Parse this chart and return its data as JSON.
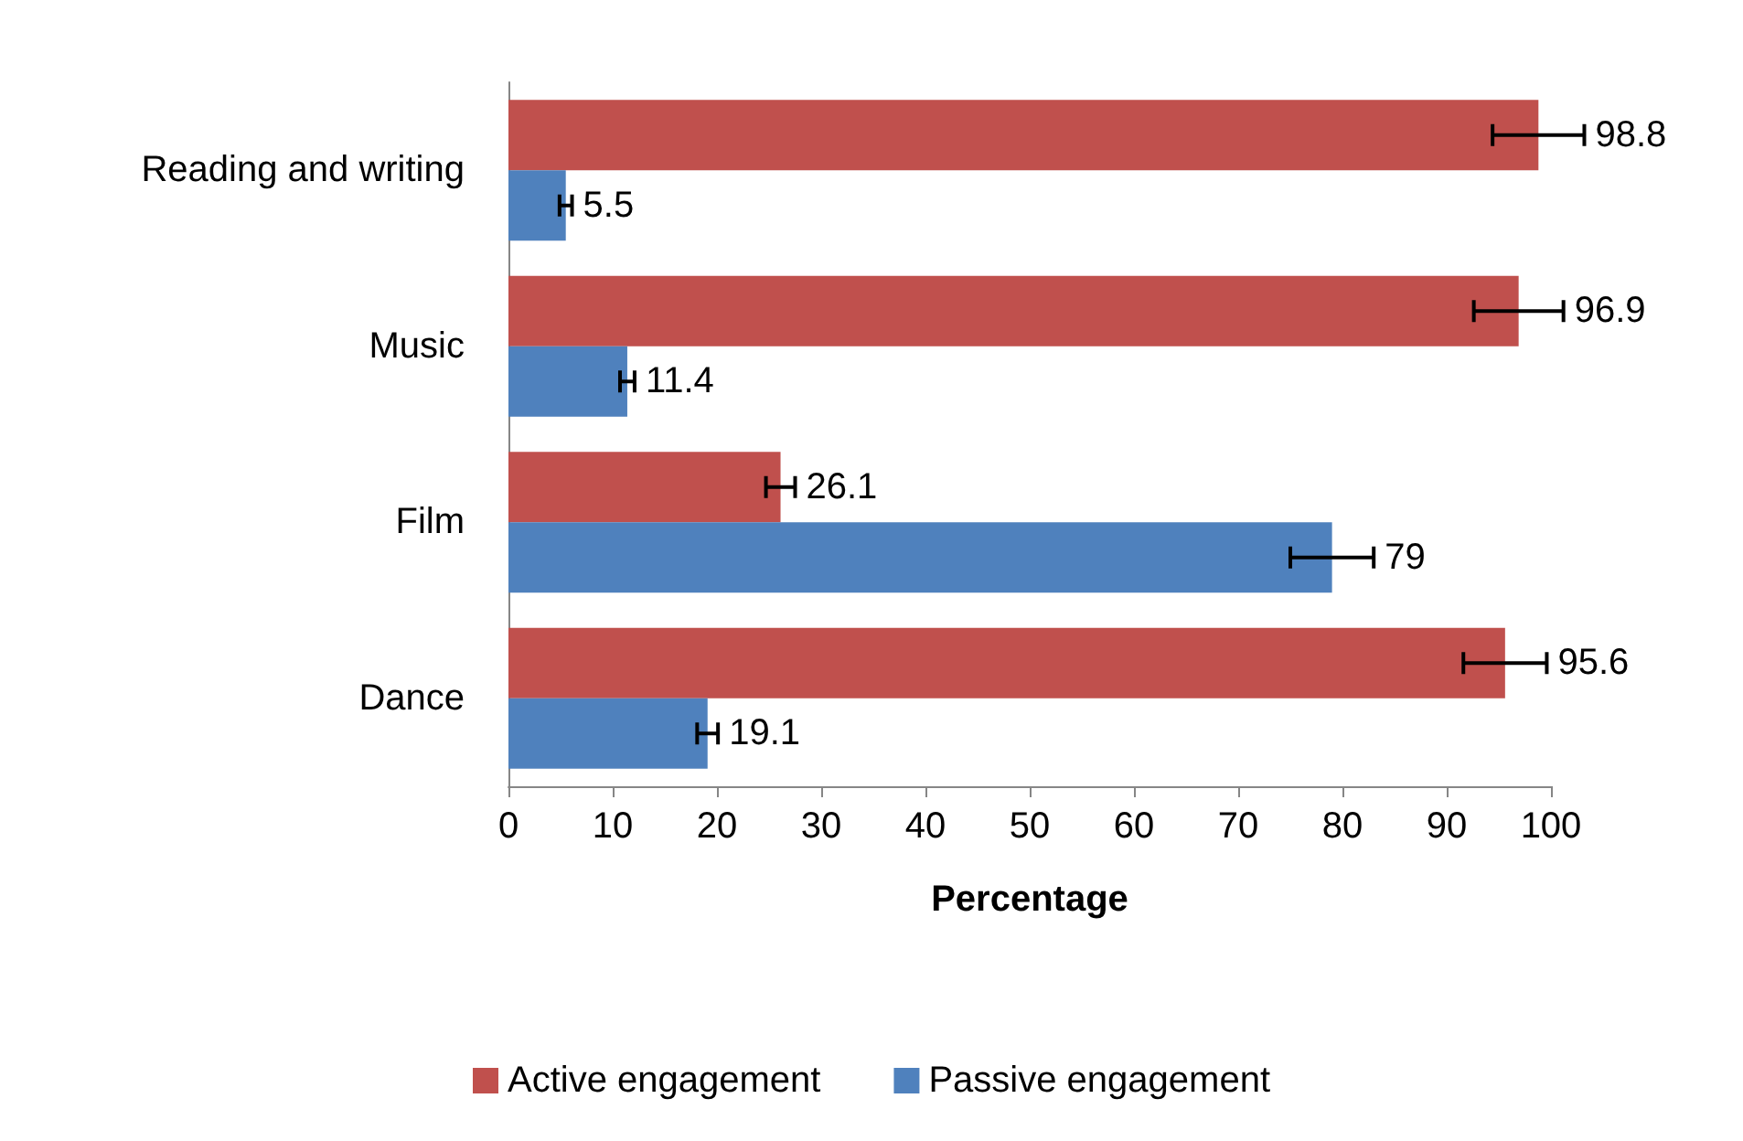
{
  "chart_data": {
    "type": "bar",
    "orientation": "horizontal",
    "xlabel": "Percentage",
    "categories": [
      "Reading and writing",
      "Music",
      "Film",
      "Dance"
    ],
    "series": [
      {
        "name": "Active engagement",
        "color": "#c0504d",
        "values": [
          98.8,
          96.9,
          26.1,
          95.6
        ],
        "errors": [
          4.4,
          4.3,
          1.4,
          4
        ]
      },
      {
        "name": "Passive engagement",
        "color": "#4f81bd",
        "values": [
          5.5,
          11.4,
          79,
          19.1
        ],
        "errors": [
          0.6,
          0.7,
          4,
          1
        ]
      }
    ],
    "xlim": [
      0,
      100
    ],
    "xticks": [
      0,
      10,
      20,
      30,
      40,
      50,
      60,
      70,
      80,
      90,
      100
    ],
    "data_labels": true,
    "legend": "bottom",
    "grid": false
  }
}
